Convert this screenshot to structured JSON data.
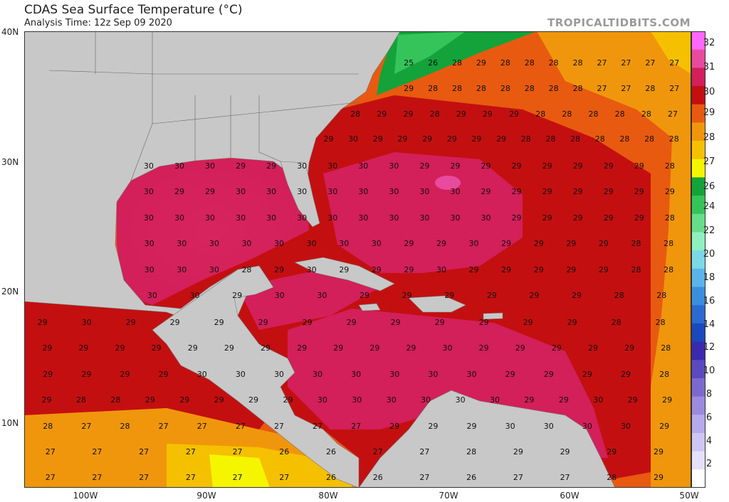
{
  "header": {
    "title": "CDAS Sea Surface Temperature (°C)",
    "subtitle": "Analysis Time: 12z Sep 09 2020",
    "brand": "TROPICALTIDBITS.COM"
  },
  "axes": {
    "lat_labels": [
      "40N",
      "30N",
      "20N",
      "10N"
    ],
    "lon_labels": [
      "100W",
      "90W",
      "80W",
      "70W",
      "60W",
      "50W"
    ]
  },
  "colorbar": {
    "labels": [
      "32",
      "31",
      "30",
      "29",
      "28",
      "27",
      "26",
      "24",
      "22",
      "20",
      "18",
      "16",
      "14",
      "12",
      "10",
      "8",
      "6",
      "4",
      "2"
    ],
    "colors": [
      "#ff66ff",
      "#e84a9e",
      "#d31f5a",
      "#c40f10",
      "#e85a10",
      "#f0960c",
      "#f5c000",
      "#f5f500",
      "#13a33a",
      "#35c45a",
      "#66dd8a",
      "#8ef0c0",
      "#7ad8e8",
      "#5ab4ec",
      "#3a8ee0",
      "#2a6ad2",
      "#1a48c0",
      "#3a2ab0",
      "#5a4ac0",
      "#7a6ad0",
      "#9a8ae0",
      "#b4aaec",
      "#cdc6f4",
      "#e4e0fa",
      "#ffffff"
    ]
  },
  "land_color": "#c8c8c8",
  "temperature_labels": [
    [
      "25",
      "26",
      "28",
      "29",
      "28",
      "28",
      "28",
      "28",
      "27",
      "27",
      "27",
      "27"
    ],
    [
      "29",
      "28",
      "28",
      "28",
      "28",
      "28",
      "28",
      "28",
      "27",
      "27",
      "28",
      "27"
    ],
    [
      "28",
      "29",
      "29",
      "28",
      "29",
      "29",
      "29",
      "28",
      "28",
      "28",
      "28",
      "28",
      "27"
    ],
    [
      "29",
      "30",
      "29",
      "29",
      "29",
      "29",
      "29",
      "29",
      "28",
      "28",
      "28",
      "28",
      "28",
      "28",
      "28"
    ],
    [
      "30",
      "30",
      "30",
      "29",
      "29",
      "30",
      "30",
      "30",
      "30",
      "29",
      "29",
      "29",
      "29",
      "29",
      "29",
      "29",
      "29",
      "28"
    ],
    [
      "30",
      "29",
      "29",
      "30",
      "30",
      "30",
      "30",
      "30",
      "30",
      "30",
      "30",
      "29",
      "29",
      "29",
      "29",
      "29",
      "29",
      "29"
    ],
    [
      "30",
      "30",
      "30",
      "30",
      "30",
      "30",
      "30",
      "30",
      "30",
      "30",
      "30",
      "30",
      "29",
      "29",
      "29",
      "29",
      "29",
      "28"
    ],
    [
      "30",
      "30",
      "30",
      "30",
      "30",
      "30",
      "30",
      "30",
      "29",
      "29",
      "30",
      "29",
      "29",
      "29",
      "29",
      "28",
      "28"
    ],
    [
      "30",
      "30",
      "30",
      "28",
      "29",
      "30",
      "29",
      "29",
      "29",
      "30",
      "29",
      "29",
      "29",
      "29",
      "29",
      "28",
      "28"
    ],
    [
      "30",
      "30",
      "29",
      "30",
      "30",
      "29",
      "29",
      "29",
      "29",
      "29",
      "29",
      "28",
      "28"
    ],
    [
      "29",
      "30",
      "29",
      "29",
      "29",
      "29",
      "29",
      "29",
      "29",
      "29",
      "29",
      "29",
      "29",
      "28",
      "28"
    ],
    [
      "29",
      "29",
      "29",
      "29",
      "29",
      "29",
      "29",
      "29",
      "29",
      "29",
      "29",
      "30",
      "29",
      "29",
      "29",
      "29",
      "29",
      "28"
    ],
    [
      "29",
      "29",
      "29",
      "29",
      "30",
      "30",
      "30",
      "30",
      "30",
      "30",
      "30",
      "30",
      "29",
      "29",
      "29",
      "29",
      "28"
    ],
    [
      "29",
      "28",
      "28",
      "29",
      "29",
      "29",
      "29",
      "29",
      "30",
      "30",
      "30",
      "30",
      "30",
      "30",
      "29",
      "29",
      "30",
      "29",
      "29"
    ],
    [
      "28",
      "27",
      "28",
      "27",
      "27",
      "27",
      "27",
      "27",
      "27",
      "29",
      "29",
      "29",
      "30",
      "30",
      "30",
      "30",
      "29"
    ],
    [
      "27",
      "27",
      "27",
      "27",
      "27",
      "26",
      "26",
      "27",
      "27",
      "28",
      "29",
      "29",
      "29",
      "29"
    ],
    [
      "27",
      "27",
      "27",
      "27",
      "27",
      "27",
      "26",
      "26",
      "27",
      "26",
      "27",
      "27",
      "28",
      "29"
    ]
  ]
}
